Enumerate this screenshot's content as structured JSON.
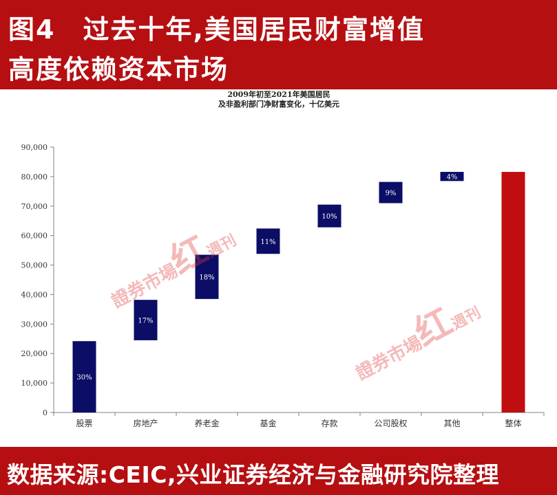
{
  "header": {
    "line1": "图4　过去十年,美国居民财富增值",
    "line2": "高度依赖资本市场"
  },
  "footer": {
    "source": "数据来源:CEIC,兴业证券经济与金融研究院整理"
  },
  "watermark": {
    "text": "證券市場",
    "mark": "红",
    "suffix": "週刊"
  },
  "colors": {
    "banner": "#b50f12",
    "bar": "#0b0d66",
    "total_bar": "#c00d10",
    "axis": "#808080",
    "text": "#333333"
  },
  "chart_data": {
    "type": "bar",
    "subtype": "waterfall",
    "title": "2009年初至2021年美国居民\n及非盈利部门净财富变化，十亿美元",
    "ylim": [
      0,
      90000
    ],
    "yticks": [
      0,
      10000,
      20000,
      30000,
      40000,
      50000,
      60000,
      70000,
      80000,
      90000
    ],
    "ytick_labels": [
      "0",
      "10,000",
      "20,000",
      "30,000",
      "40,000",
      "50,000",
      "60,000",
      "70,000",
      "80,000",
      "90,000"
    ],
    "categories": [
      "股票",
      "房地产",
      "养老金",
      "基金",
      "存款",
      "公司股权",
      "其他",
      "整体"
    ],
    "bars": [
      {
        "category": "股票",
        "start": 0,
        "end": 24200,
        "label": "30%"
      },
      {
        "category": "房地产",
        "start": 24500,
        "end": 38200,
        "label": "17%"
      },
      {
        "category": "养老金",
        "start": 38500,
        "end": 53500,
        "label": "18%"
      },
      {
        "category": "基金",
        "start": 53800,
        "end": 62400,
        "label": "11%"
      },
      {
        "category": "存款",
        "start": 62800,
        "end": 70500,
        "label": "10%"
      },
      {
        "category": "公司股权",
        "start": 71000,
        "end": 78200,
        "label": "9%"
      },
      {
        "category": "其他",
        "start": 78500,
        "end": 81600,
        "label": "4%"
      },
      {
        "category": "整体",
        "start": 0,
        "end": 81600,
        "label": ""
      }
    ],
    "grid": false,
    "legend": "none"
  }
}
